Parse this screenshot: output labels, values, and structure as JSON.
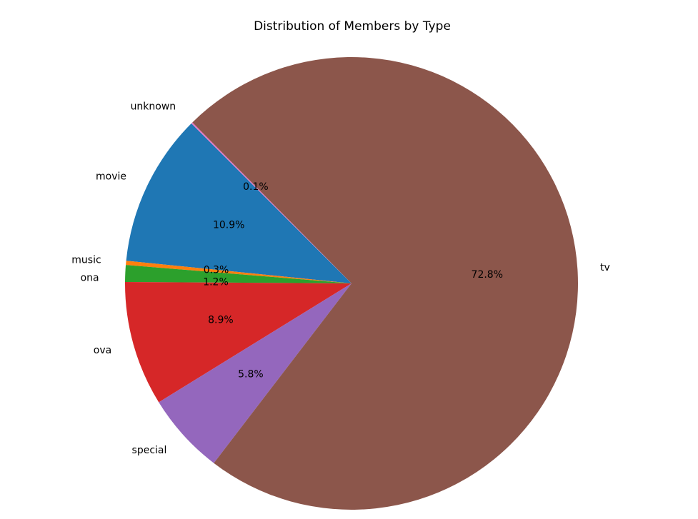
{
  "chart_data": {
    "type": "pie",
    "title": "Distribution of Members by Type",
    "start_angle_deg": 135,
    "direction": "counterclockwise",
    "slices": [
      {
        "label": "movie",
        "percent_label": "10.9%",
        "value": 10.9,
        "color": "#1f77b4"
      },
      {
        "label": "music",
        "percent_label": "0.3%",
        "value": 0.3,
        "color": "#ff7f0e"
      },
      {
        "label": "ona",
        "percent_label": "1.2%",
        "value": 1.2,
        "color": "#2ca02c"
      },
      {
        "label": "ova",
        "percent_label": "8.9%",
        "value": 8.9,
        "color": "#d62728"
      },
      {
        "label": "special",
        "percent_label": "5.8%",
        "value": 5.8,
        "color": "#9467bd"
      },
      {
        "label": "tv",
        "percent_label": "72.8%",
        "value": 72.8,
        "color": "#8c564b"
      },
      {
        "label": "unknown",
        "percent_label": "0.1%",
        "value": 0.1,
        "color": "#e377c2"
      }
    ]
  }
}
